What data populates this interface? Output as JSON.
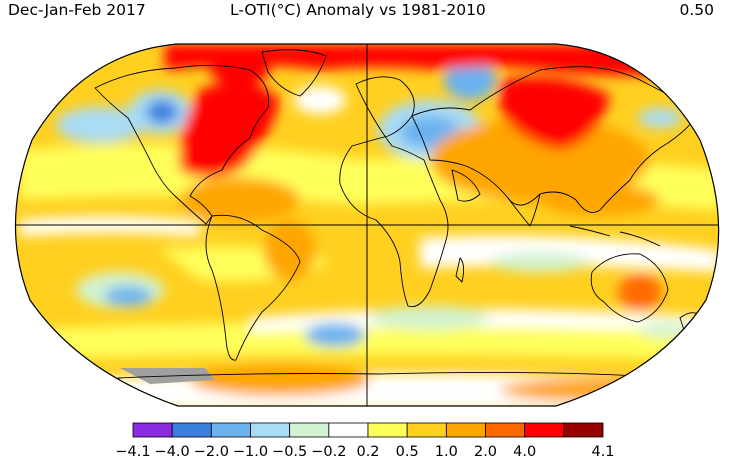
{
  "header": {
    "period": "Dec-Jan-Feb 2017",
    "title": "L-OTI(°C) Anomaly vs 1981-2010",
    "global_mean": "0.50"
  },
  "legend": {
    "colors": [
      "#8a2be2",
      "#3a7fe0",
      "#6ab2f0",
      "#a9dcf5",
      "#d2f3d2",
      "#ffffff",
      "#ffff5c",
      "#ffd020",
      "#ffa500",
      "#ff6a00",
      "#ff0000",
      "#990000"
    ],
    "ticks": [
      "−4.1",
      "−4.0",
      "−2.0",
      "−1.0",
      "−0.5",
      "−0.2",
      "0.2",
      "0.5",
      "1.0",
      "2.0",
      "4.0",
      "4.1"
    ]
  },
  "map": {
    "projection": "robinson",
    "graticule": "equator and prime meridian",
    "missing_data_color": "#a0a0a0"
  }
}
